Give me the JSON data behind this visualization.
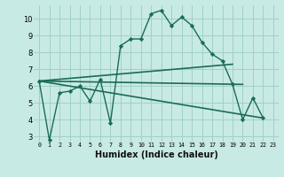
{
  "title": "",
  "xlabel": "Humidex (Indice chaleur)",
  "bg_color": "#c8eae4",
  "line_color": "#1a6b5a",
  "grid_color": "#a0d0c8",
  "xlim": [
    -0.5,
    23.5
  ],
  "ylim": [
    2.7,
    10.8
  ],
  "yticks": [
    3,
    4,
    5,
    6,
    7,
    8,
    9,
    10
  ],
  "xticks": [
    0,
    1,
    2,
    3,
    4,
    5,
    6,
    7,
    8,
    9,
    10,
    11,
    12,
    13,
    14,
    15,
    16,
    17,
    18,
    19,
    20,
    21,
    22,
    23
  ],
  "zigzag_x": [
    0,
    1,
    2,
    3,
    4,
    5,
    6,
    7,
    8,
    9,
    10,
    11,
    12,
    13,
    14,
    15,
    16,
    17,
    18,
    19,
    20,
    21,
    22
  ],
  "zigzag_y": [
    6.3,
    2.8,
    5.6,
    5.7,
    6.0,
    5.1,
    6.4,
    3.8,
    8.4,
    8.8,
    8.8,
    10.3,
    10.5,
    9.6,
    10.1,
    9.6,
    8.6,
    7.9,
    7.5,
    6.1,
    4.0,
    5.3,
    4.1
  ],
  "line1_x": [
    0,
    19
  ],
  "line1_y": [
    6.3,
    7.3
  ],
  "line2_x": [
    0,
    20
  ],
  "line2_y": [
    6.3,
    6.1
  ],
  "line3_x": [
    0,
    22
  ],
  "line3_y": [
    6.3,
    4.1
  ]
}
